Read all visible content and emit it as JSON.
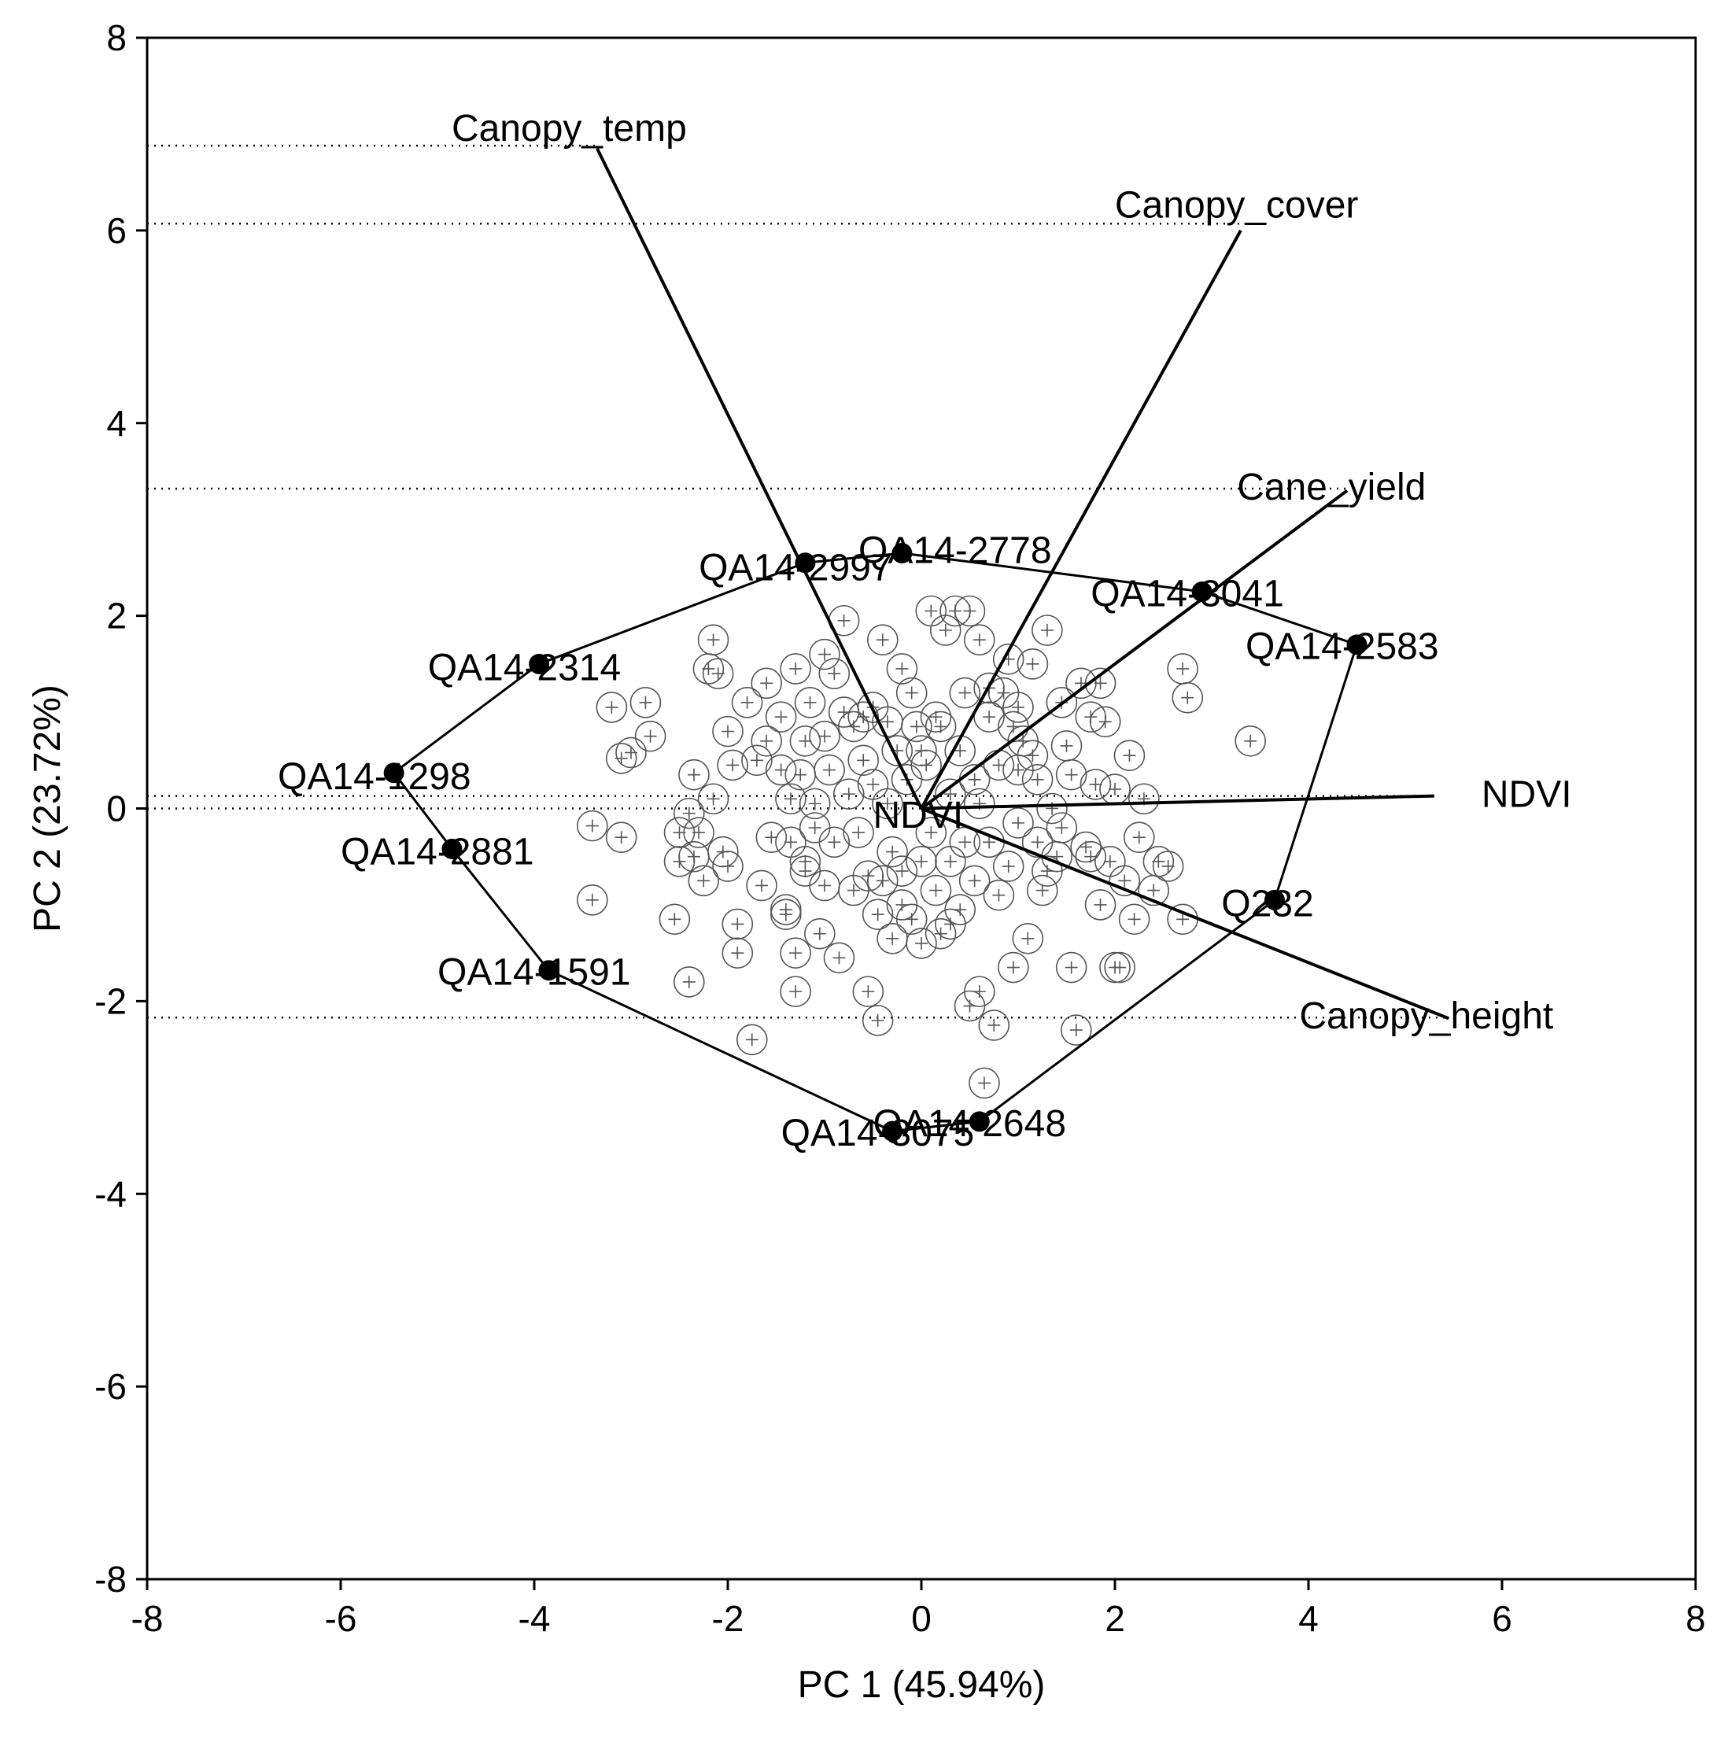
{
  "chart_data": {
    "type": "scatter",
    "subtype": "pca-biplot",
    "xlabel": "PC 1 (45.94%)",
    "ylabel": "PC 2 (23.72%)",
    "xlim": [
      -8,
      8
    ],
    "ylim": [
      -8,
      8
    ],
    "xticks": [
      "-8",
      "-6",
      "-4",
      "-2",
      "0",
      "2",
      "4",
      "6",
      "8"
    ],
    "yticks": [
      "8",
      "6",
      "4",
      "2",
      "0",
      "-2",
      "-4",
      "-6",
      "-8"
    ],
    "colors": {
      "ink": "#000000",
      "points": "#555555"
    },
    "loadings": [
      {
        "name": "Canopy_temp",
        "x": -3.35,
        "y": 6.85,
        "ref_y": 6.88
      },
      {
        "name": "Canopy_cover",
        "x": 3.3,
        "y": 6.0,
        "ref_y": 6.07
      },
      {
        "name": "Cane_yield",
        "x": 4.4,
        "y": 3.3,
        "ref_y": 3.32
      },
      {
        "name": "NDVI",
        "x": 5.3,
        "y": 0.13,
        "ref_y": 0.13
      },
      {
        "name": "Canopy_height",
        "x": 5.45,
        "y": -2.18,
        "ref_y": -2.17
      }
    ],
    "hull_genotypes": [
      {
        "name": "QA14-2778",
        "x": -0.2,
        "y": 2.65
      },
      {
        "name": "QA14-3041",
        "x": 2.9,
        "y": 2.25
      },
      {
        "name": "QA14-2583",
        "x": 4.5,
        "y": 1.7
      },
      {
        "name": "Q232",
        "x": 3.65,
        "y": -0.95
      },
      {
        "name": "QA14-2648",
        "x": 0.6,
        "y": -3.25
      },
      {
        "name": "QA14-3075",
        "x": -0.3,
        "y": -3.35
      },
      {
        "name": "QA14-1591",
        "x": -3.85,
        "y": -1.68
      },
      {
        "name": "QA14-2881",
        "x": -4.85,
        "y": -0.42
      },
      {
        "name": "QA14-1298",
        "x": -5.45,
        "y": 0.37
      },
      {
        "name": "QA14-2314",
        "x": -3.95,
        "y": 1.5
      },
      {
        "name": "QA14-2997",
        "x": -1.2,
        "y": 2.55
      }
    ],
    "origin_label": "NDVI",
    "points": [
      [
        -3.4,
        -0.18
      ],
      [
        -3.1,
        -0.3
      ],
      [
        -3.2,
        1.05
      ],
      [
        -2.85,
        1.1
      ],
      [
        -3.0,
        0.58
      ],
      [
        -3.1,
        0.52
      ],
      [
        -2.8,
        0.75
      ],
      [
        -3.4,
        -0.95
      ],
      [
        -2.5,
        -0.25
      ],
      [
        -2.5,
        -0.55
      ],
      [
        -2.55,
        -1.15
      ],
      [
        -2.4,
        -1.8
      ],
      [
        -2.35,
        0.35
      ],
      [
        -2.4,
        -0.05
      ],
      [
        -2.3,
        -0.25
      ],
      [
        -2.25,
        -0.75
      ],
      [
        -2.15,
        0.1
      ],
      [
        -2.05,
        -0.45
      ],
      [
        -2.0,
        -0.6
      ],
      [
        -2.2,
        1.45
      ],
      [
        -2.15,
        1.75
      ],
      [
        -2.1,
        1.4
      ],
      [
        -2.0,
        0.8
      ],
      [
        -1.9,
        -1.2
      ],
      [
        -1.9,
        -1.5
      ],
      [
        -1.75,
        -2.4
      ],
      [
        -1.8,
        1.1
      ],
      [
        -1.7,
        0.5
      ],
      [
        -1.6,
        1.3
      ],
      [
        -1.6,
        0.7
      ],
      [
        -1.55,
        -0.3
      ],
      [
        -1.45,
        0.95
      ],
      [
        -1.4,
        -1.05
      ],
      [
        -1.4,
        -1.1
      ],
      [
        -1.35,
        0.1
      ],
      [
        -1.35,
        -0.35
      ],
      [
        -1.3,
        1.45
      ],
      [
        -1.3,
        -1.5
      ],
      [
        -1.3,
        -1.9
      ],
      [
        -1.25,
        0.35
      ],
      [
        -1.2,
        0.7
      ],
      [
        -1.2,
        -0.65
      ],
      [
        -1.15,
        1.1
      ],
      [
        -1.1,
        0.05
      ],
      [
        -1.1,
        -0.2
      ],
      [
        -1.05,
        -1.3
      ],
      [
        -1.0,
        -0.8
      ],
      [
        -1.0,
        0.75
      ],
      [
        -0.95,
        0.4
      ],
      [
        -0.9,
        1.4
      ],
      [
        -0.9,
        -0.35
      ],
      [
        -0.85,
        -1.55
      ],
      [
        -0.8,
        1.95
      ],
      [
        -0.75,
        0.15
      ],
      [
        -0.7,
        -0.85
      ],
      [
        -0.7,
        0.85
      ],
      [
        -0.65,
        -0.25
      ],
      [
        -0.6,
        0.5
      ],
      [
        -0.55,
        -0.7
      ],
      [
        -0.55,
        -1.9
      ],
      [
        -0.5,
        1.05
      ],
      [
        -0.5,
        0.25
      ],
      [
        -0.45,
        -1.1
      ],
      [
        -0.45,
        -2.2
      ],
      [
        -0.4,
        1.75
      ],
      [
        -0.4,
        -0.75
      ],
      [
        -0.35,
        0.9
      ],
      [
        -0.3,
        -0.45
      ],
      [
        -0.3,
        -1.35
      ],
      [
        -0.25,
        0.6
      ],
      [
        -0.2,
        1.45
      ],
      [
        -0.2,
        -1.0
      ],
      [
        -0.15,
        0.3
      ],
      [
        -0.1,
        -1.15
      ],
      [
        -0.05,
        0.85
      ],
      [
        0.0,
        -0.55
      ],
      [
        0.0,
        -1.4
      ],
      [
        0.05,
        0.45
      ],
      [
        0.1,
        2.05
      ],
      [
        0.1,
        -0.25
      ],
      [
        0.15,
        -0.85
      ],
      [
        0.2,
        0.85
      ],
      [
        0.2,
        -1.3
      ],
      [
        0.25,
        1.85
      ],
      [
        0.3,
        -0.55
      ],
      [
        0.3,
        0.15
      ],
      [
        0.35,
        2.05
      ],
      [
        0.4,
        -1.05
      ],
      [
        0.4,
        0.6
      ],
      [
        0.45,
        1.2
      ],
      [
        0.5,
        2.05
      ],
      [
        0.5,
        -2.05
      ],
      [
        0.55,
        0.3
      ],
      [
        0.55,
        -0.75
      ],
      [
        0.6,
        1.75
      ],
      [
        0.6,
        -1.9
      ],
      [
        0.65,
        -2.85
      ],
      [
        0.7,
        0.95
      ],
      [
        0.7,
        -0.35
      ],
      [
        0.75,
        -2.25
      ],
      [
        0.8,
        0.45
      ],
      [
        0.85,
        1.2
      ],
      [
        0.9,
        -0.6
      ],
      [
        0.95,
        -1.65
      ],
      [
        1.0,
        1.05
      ],
      [
        1.0,
        -0.15
      ],
      [
        1.05,
        0.7
      ],
      [
        1.1,
        -1.35
      ],
      [
        1.15,
        1.5
      ],
      [
        1.2,
        0.3
      ],
      [
        1.25,
        -0.85
      ],
      [
        1.3,
        1.85
      ],
      [
        1.35,
        0.0
      ],
      [
        1.4,
        -0.5
      ],
      [
        1.45,
        1.1
      ],
      [
        1.5,
        0.65
      ],
      [
        1.55,
        -1.65
      ],
      [
        1.6,
        -2.3
      ],
      [
        1.65,
        1.3
      ],
      [
        1.7,
        -0.4
      ],
      [
        1.75,
        0.95
      ],
      [
        1.8,
        0.25
      ],
      [
        1.85,
        -1.0
      ],
      [
        1.9,
        0.9
      ],
      [
        1.95,
        -0.55
      ],
      [
        2.0,
        0.2
      ],
      [
        2.0,
        -1.65
      ],
      [
        2.1,
        -0.75
      ],
      [
        2.15,
        0.55
      ],
      [
        2.2,
        -1.15
      ],
      [
        2.25,
        -0.3
      ],
      [
        2.3,
        0.1
      ],
      [
        2.4,
        -0.85
      ],
      [
        2.45,
        -0.55
      ],
      [
        2.55,
        -0.6
      ],
      [
        2.7,
        -1.15
      ],
      [
        2.7,
        1.45
      ],
      [
        2.75,
        1.15
      ],
      [
        3.4,
        0.7
      ],
      [
        -1.45,
        0.4
      ],
      [
        -1.0,
        1.6
      ],
      [
        -0.8,
        1.0
      ],
      [
        -0.6,
        0.95
      ],
      [
        0.9,
        1.55
      ],
      [
        1.0,
        0.4
      ],
      [
        1.2,
        -0.35
      ],
      [
        0.8,
        -0.9
      ],
      [
        0.3,
        -1.2
      ],
      [
        -0.2,
        -0.65
      ],
      [
        1.55,
        0.35
      ],
      [
        1.75,
        -0.5
      ],
      [
        0.15,
        0.95
      ],
      [
        -0.1,
        1.2
      ],
      [
        0.6,
        0.05
      ],
      [
        0.95,
        0.85
      ],
      [
        1.3,
        -0.65
      ],
      [
        -1.95,
        0.45
      ],
      [
        -2.35,
        -0.5
      ],
      [
        -1.65,
        -0.8
      ],
      [
        -1.2,
        -0.55
      ],
      [
        0.45,
        -0.35
      ],
      [
        1.85,
        1.3
      ],
      [
        2.05,
        -1.65
      ],
      [
        1.45,
        -0.2
      ],
      [
        -0.35,
        0.05
      ],
      [
        0.0,
        0.6
      ],
      [
        0.7,
        1.25
      ],
      [
        1.15,
        0.55
      ]
    ]
  }
}
